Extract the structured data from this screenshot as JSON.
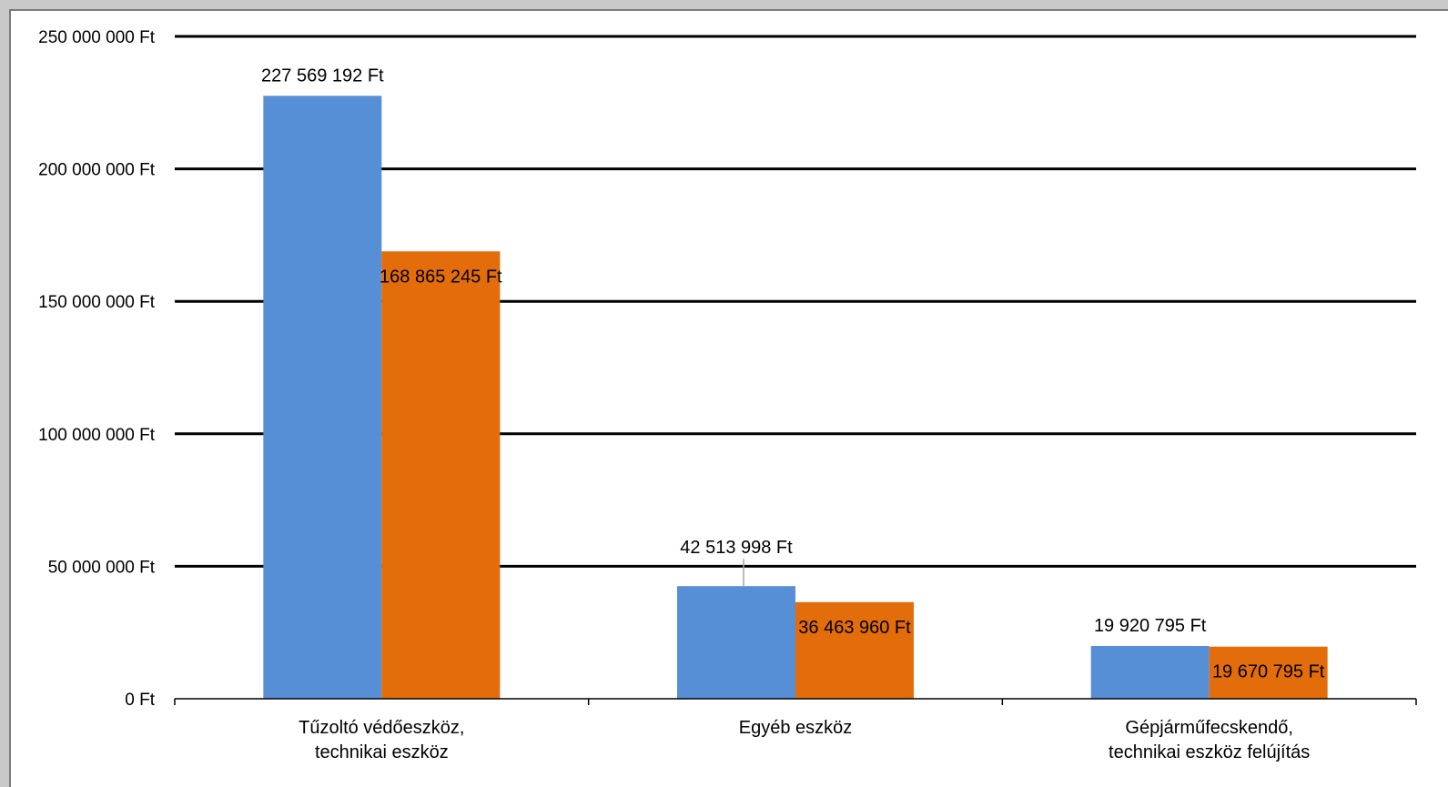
{
  "chart_data": {
    "type": "bar",
    "categories": [
      [
        "Tűzoltó védőeszköz,",
        "technikai eszköz"
      ],
      [
        "Egyéb eszköz"
      ],
      [
        "Gépjárműfecskendő,",
        "technikai eszköz felújítás"
      ]
    ],
    "series": [
      {
        "color": "#568fd6",
        "values": [
          227569192,
          42513998,
          19920795
        ],
        "labels": [
          "227 569 192 Ft",
          "42 513 998 Ft",
          "19 920 795 Ft"
        ]
      },
      {
        "color": "#e36c0b",
        "values": [
          168865245,
          36463960,
          19670795
        ],
        "labels": [
          "168 865 245 Ft",
          "36 463 960 Ft",
          "19 670 795 Ft"
        ]
      }
    ],
    "ylim": [
      0,
      250000000
    ],
    "yticks": [
      0,
      50000000,
      100000000,
      150000000,
      200000000,
      250000000
    ],
    "ytick_labels": [
      "0 Ft",
      "50 000 000 Ft",
      "100 000 000 Ft",
      "150 000 000 Ft",
      "200 000 000 Ft",
      "250 000 000 Ft"
    ],
    "grid": true,
    "legend": "none"
  }
}
